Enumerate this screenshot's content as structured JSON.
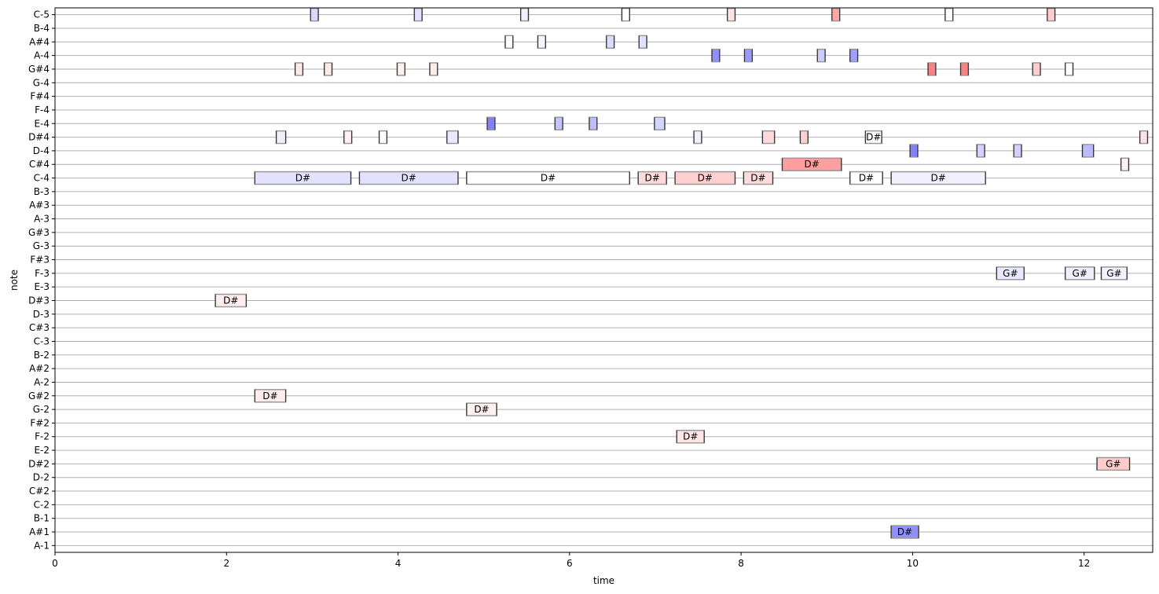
{
  "chart_data": {
    "type": "piano-roll",
    "xlabel": "time",
    "ylabel": "note",
    "xlim": [
      0,
      12.8
    ],
    "x_ticks": [
      0,
      2,
      4,
      6,
      8,
      10,
      12
    ],
    "grid": "horizontal",
    "notes_axis": [
      "A-1",
      "A#1",
      "B-1",
      "C-2",
      "C#2",
      "D-2",
      "D#2",
      "E-2",
      "F-2",
      "F#2",
      "G-2",
      "G#2",
      "A-2",
      "A#2",
      "B-2",
      "C-3",
      "C#3",
      "D-3",
      "D#3",
      "E-3",
      "F-3",
      "F#3",
      "G-3",
      "G#3",
      "A-3",
      "A#3",
      "B-3",
      "C-4",
      "C#4",
      "D-4",
      "D#4",
      "E-4",
      "F-4",
      "F#4",
      "G-4",
      "G#4",
      "A-4",
      "A#4",
      "B-4",
      "C-5"
    ],
    "notes": [
      {
        "pitch": "C-5",
        "start": 2.98,
        "end": 3.07,
        "color": "#d9d9ff",
        "label": ""
      },
      {
        "pitch": "C-5",
        "start": 4.19,
        "end": 4.28,
        "color": "#e2e2ff",
        "label": ""
      },
      {
        "pitch": "C-5",
        "start": 5.43,
        "end": 5.52,
        "color": "#f0f0ff",
        "label": ""
      },
      {
        "pitch": "C-5",
        "start": 6.61,
        "end": 6.7,
        "color": "#ffffff",
        "label": ""
      },
      {
        "pitch": "C-5",
        "start": 7.84,
        "end": 7.93,
        "color": "#ffe2e2",
        "label": ""
      },
      {
        "pitch": "C-5",
        "start": 9.06,
        "end": 9.15,
        "color": "#ffa6a6",
        "label": ""
      },
      {
        "pitch": "C-5",
        "start": 10.38,
        "end": 10.47,
        "color": "#ffffff",
        "label": ""
      },
      {
        "pitch": "C-5",
        "start": 11.57,
        "end": 11.66,
        "color": "#ffcccc",
        "label": ""
      },
      {
        "pitch": "A#4",
        "start": 5.25,
        "end": 5.34,
        "color": "#ffffff",
        "label": ""
      },
      {
        "pitch": "A#4",
        "start": 5.63,
        "end": 5.72,
        "color": "#f5f5ff",
        "label": ""
      },
      {
        "pitch": "A#4",
        "start": 6.43,
        "end": 6.52,
        "color": "#dcdcff",
        "label": ""
      },
      {
        "pitch": "A#4",
        "start": 6.81,
        "end": 6.9,
        "color": "#e0e0ff",
        "label": ""
      },
      {
        "pitch": "A-4",
        "start": 7.66,
        "end": 7.75,
        "color": "#8f8fff",
        "label": ""
      },
      {
        "pitch": "A-4",
        "start": 8.04,
        "end": 8.13,
        "color": "#9999ff",
        "label": ""
      },
      {
        "pitch": "A-4",
        "start": 8.89,
        "end": 8.98,
        "color": "#ccccff",
        "label": ""
      },
      {
        "pitch": "A-4",
        "start": 9.27,
        "end": 9.36,
        "color": "#9f9fff",
        "label": ""
      },
      {
        "pitch": "G#4",
        "start": 2.8,
        "end": 2.89,
        "color": "#ffe8e8",
        "label": ""
      },
      {
        "pitch": "G#4",
        "start": 3.14,
        "end": 3.23,
        "color": "#ffe8e8",
        "label": ""
      },
      {
        "pitch": "G#4",
        "start": 3.99,
        "end": 4.08,
        "color": "#ffeeee",
        "label": ""
      },
      {
        "pitch": "G#4",
        "start": 4.37,
        "end": 4.46,
        "color": "#ffeaea",
        "label": ""
      },
      {
        "pitch": "G#4",
        "start": 10.18,
        "end": 10.27,
        "color": "#ff8080",
        "label": ""
      },
      {
        "pitch": "G#4",
        "start": 10.56,
        "end": 10.65,
        "color": "#ff8080",
        "label": ""
      },
      {
        "pitch": "G#4",
        "start": 11.4,
        "end": 11.49,
        "color": "#ffcccc",
        "label": ""
      },
      {
        "pitch": "G#4",
        "start": 11.78,
        "end": 11.87,
        "color": "#ffffff",
        "label": ""
      },
      {
        "pitch": "E-4",
        "start": 5.04,
        "end": 5.13,
        "color": "#8080ff",
        "label": ""
      },
      {
        "pitch": "E-4",
        "start": 5.83,
        "end": 5.92,
        "color": "#c4c4ff",
        "label": ""
      },
      {
        "pitch": "E-4",
        "start": 6.23,
        "end": 6.32,
        "color": "#bcbcff",
        "label": ""
      },
      {
        "pitch": "E-4",
        "start": 6.99,
        "end": 7.11,
        "color": "#d4d4ff",
        "label": ""
      },
      {
        "pitch": "D#4",
        "start": 2.58,
        "end": 2.69,
        "color": "#eeeeff",
        "label": ""
      },
      {
        "pitch": "D#4",
        "start": 3.37,
        "end": 3.46,
        "color": "#fff1f1",
        "label": ""
      },
      {
        "pitch": "D#4",
        "start": 3.78,
        "end": 3.87,
        "color": "#ffffff",
        "label": ""
      },
      {
        "pitch": "D#4",
        "start": 4.57,
        "end": 4.7,
        "color": "#e8e8ff",
        "label": ""
      },
      {
        "pitch": "D#4",
        "start": 7.45,
        "end": 7.54,
        "color": "#f0f0ff",
        "label": ""
      },
      {
        "pitch": "D#4",
        "start": 8.25,
        "end": 8.39,
        "color": "#ffdada",
        "label": ""
      },
      {
        "pitch": "D#4",
        "start": 8.69,
        "end": 8.78,
        "color": "#ffd0d0",
        "label": ""
      },
      {
        "pitch": "D#4",
        "start": 9.45,
        "end": 9.64,
        "color": "#ffffff",
        "label": "D#"
      },
      {
        "pitch": "D#4",
        "start": 12.65,
        "end": 12.74,
        "color": "#ffe2e2",
        "label": ""
      },
      {
        "pitch": "D-4",
        "start": 9.97,
        "end": 10.06,
        "color": "#7f7fff",
        "label": ""
      },
      {
        "pitch": "D-4",
        "start": 10.75,
        "end": 10.84,
        "color": "#d2d2ff",
        "label": ""
      },
      {
        "pitch": "D-4",
        "start": 11.18,
        "end": 11.27,
        "color": "#d0d0ff",
        "label": ""
      },
      {
        "pitch": "D-4",
        "start": 11.98,
        "end": 12.11,
        "color": "#bbbbff",
        "label": ""
      },
      {
        "pitch": "C#4",
        "start": 8.48,
        "end": 9.17,
        "color": "#ff9e9e",
        "label": "D#"
      },
      {
        "pitch": "C#4",
        "start": 12.43,
        "end": 12.52,
        "color": "#fff1f1",
        "label": ""
      },
      {
        "pitch": "C-4",
        "start": 2.33,
        "end": 3.45,
        "color": "#e2e2ff",
        "label": "D#"
      },
      {
        "pitch": "C-4",
        "start": 3.55,
        "end": 4.7,
        "color": "#e2e2ff",
        "label": "D#"
      },
      {
        "pitch": "C-4",
        "start": 4.8,
        "end": 6.7,
        "color": "#ffffff",
        "label": "D#"
      },
      {
        "pitch": "C-4",
        "start": 6.8,
        "end": 7.13,
        "color": "#ffdada",
        "label": "D#"
      },
      {
        "pitch": "C-4",
        "start": 7.23,
        "end": 7.93,
        "color": "#ffd0d0",
        "label": "D#"
      },
      {
        "pitch": "C-4",
        "start": 8.03,
        "end": 8.37,
        "color": "#ffdcdc",
        "label": "D#"
      },
      {
        "pitch": "C-4",
        "start": 9.27,
        "end": 9.65,
        "color": "#ffffff",
        "label": "D#"
      },
      {
        "pitch": "C-4",
        "start": 9.75,
        "end": 10.85,
        "color": "#f0f0ff",
        "label": "D#"
      },
      {
        "pitch": "F-3",
        "start": 10.98,
        "end": 11.3,
        "color": "#e9e9ff",
        "label": "G#"
      },
      {
        "pitch": "F-3",
        "start": 11.78,
        "end": 12.12,
        "color": "#eeeeff",
        "label": "G#"
      },
      {
        "pitch": "F-3",
        "start": 12.2,
        "end": 12.5,
        "color": "#f2f2ff",
        "label": "G#"
      },
      {
        "pitch": "D#3",
        "start": 1.87,
        "end": 2.23,
        "color": "#ffecec",
        "label": "D#"
      },
      {
        "pitch": "G#2",
        "start": 2.33,
        "end": 2.69,
        "color": "#ffecec",
        "label": "D#"
      },
      {
        "pitch": "G-2",
        "start": 4.8,
        "end": 5.15,
        "color": "#fff1f1",
        "label": "D#"
      },
      {
        "pitch": "F-2",
        "start": 7.25,
        "end": 7.57,
        "color": "#ffe6e6",
        "label": "D#"
      },
      {
        "pitch": "D#2",
        "start": 12.15,
        "end": 12.53,
        "color": "#ffcccc",
        "label": "G#"
      },
      {
        "pitch": "A#1",
        "start": 9.75,
        "end": 10.07,
        "color": "#8f8fff",
        "label": "D#"
      }
    ]
  }
}
